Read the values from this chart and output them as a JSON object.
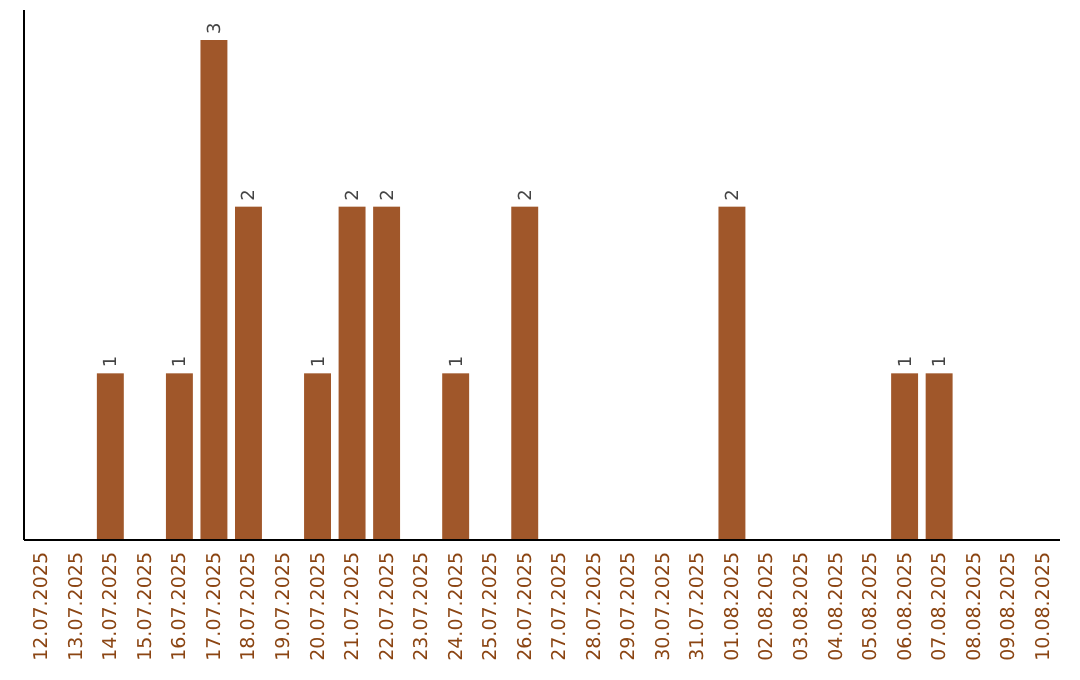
{
  "chart_data": {
    "type": "bar",
    "categories": [
      "12.07.2025",
      "13.07.2025",
      "14.07.2025",
      "15.07.2025",
      "16.07.2025",
      "17.07.2025",
      "18.07.2025",
      "19.07.2025",
      "20.07.2025",
      "21.07.2025",
      "22.07.2025",
      "23.07.2025",
      "24.07.2025",
      "25.07.2025",
      "26.07.2025",
      "27.07.2025",
      "28.07.2025",
      "29.07.2025",
      "30.07.2025",
      "31.07.2025",
      "01.08.2025",
      "02.08.2025",
      "03.08.2025",
      "04.08.2025",
      "05.08.2025",
      "06.08.2025",
      "07.08.2025",
      "08.08.2025",
      "09.08.2025",
      "10.08.2025"
    ],
    "values": [
      null,
      null,
      1,
      null,
      1,
      3,
      2,
      null,
      1,
      2,
      2,
      null,
      1,
      null,
      2,
      null,
      null,
      null,
      null,
      null,
      2,
      null,
      null,
      null,
      null,
      1,
      1,
      null,
      null,
      null
    ],
    "color": "#a0572a",
    "data_labels": true
  }
}
